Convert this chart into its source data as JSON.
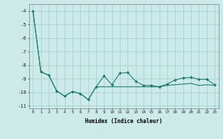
{
  "xlabel": "Humidex (Indice chaleur)",
  "bg_color": "#cceae7",
  "grid_color": "#aad4d0",
  "line_color": "#1a7a6e",
  "x": [
    0,
    1,
    2,
    3,
    4,
    5,
    6,
    7,
    8,
    9,
    10,
    11,
    12,
    13,
    14,
    15,
    16,
    17,
    18,
    19,
    20,
    21,
    22,
    23
  ],
  "line1": [
    -4.0,
    -8.5,
    -8.75,
    -9.9,
    -10.3,
    -9.95,
    -10.1,
    -10.55,
    -9.6,
    -8.8,
    -9.45,
    -8.6,
    -8.55,
    -9.2,
    -9.5,
    -9.5,
    -9.6,
    -9.4,
    -9.1,
    -8.95,
    -8.9,
    -9.05,
    -9.05,
    -9.45
  ],
  "line2": [
    -4.0,
    -8.5,
    -8.75,
    -9.9,
    -10.3,
    -9.95,
    -10.1,
    -10.55,
    -9.6,
    -9.6,
    -9.6,
    -9.6,
    -9.6,
    -9.6,
    -9.6,
    -9.6,
    -9.6,
    -9.5,
    -9.45,
    -9.4,
    -9.35,
    -9.5,
    -9.45,
    -9.5
  ],
  "ylim": [
    -11.2,
    -3.5
  ],
  "xlim": [
    -0.5,
    23.5
  ],
  "yticks": [
    -4,
    -5,
    -6,
    -7,
    -8,
    -9,
    -10,
    -11
  ],
  "xticks": [
    0,
    1,
    2,
    3,
    4,
    5,
    6,
    7,
    8,
    9,
    10,
    11,
    12,
    13,
    14,
    15,
    16,
    17,
    18,
    19,
    20,
    21,
    22,
    23
  ]
}
